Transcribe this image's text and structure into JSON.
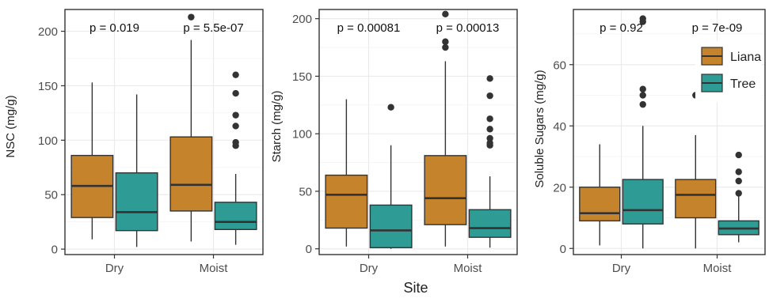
{
  "figure": {
    "shared_xlabel": "Site"
  },
  "colors": {
    "Liana": "#C5832C",
    "Tree": "#2E9B94",
    "panel_border": "#333333",
    "grid": "#EBEBEB",
    "box_line": "#333333"
  },
  "chart_data": [
    {
      "type": "boxplot",
      "ylabel": "NSC (mg/g)",
      "categories": [
        "Dry",
        "Moist"
      ],
      "ylim": [
        -5,
        220
      ],
      "yticks": [
        0,
        50,
        100,
        150,
        200
      ],
      "grid": true,
      "legend": null,
      "pvalues": [
        "p = 0.019",
        "p = 5.5e-07"
      ],
      "series": [
        {
          "name": "Liana",
          "boxes": [
            {
              "whisker_low": 9,
              "q1": 29,
              "median": 58,
              "q3": 86,
              "whisker_high": 153,
              "outliers": []
            },
            {
              "whisker_low": 7,
              "q1": 35,
              "median": 59,
              "q3": 103,
              "whisker_high": 192,
              "outliers": [
                213
              ]
            }
          ]
        },
        {
          "name": "Tree",
          "boxes": [
            {
              "whisker_low": 2,
              "q1": 17,
              "median": 34,
              "q3": 70,
              "whisker_high": 142,
              "outliers": []
            },
            {
              "whisker_low": 4,
              "q1": 18,
              "median": 25,
              "q3": 43,
              "whisker_high": 69,
              "outliers": [
                95,
                98,
                113,
                123,
                143,
                160
              ]
            }
          ]
        }
      ]
    },
    {
      "type": "boxplot",
      "ylabel": "Starch (mg/g)",
      "categories": [
        "Dry",
        "Moist"
      ],
      "ylim": [
        -5,
        208
      ],
      "yticks": [
        0,
        50,
        100,
        150,
        200
      ],
      "grid": true,
      "legend": null,
      "pvalues": [
        "p = 0.00081",
        "p = 0.00013"
      ],
      "series": [
        {
          "name": "Liana",
          "boxes": [
            {
              "whisker_low": 2,
              "q1": 18,
              "median": 47,
              "q3": 64,
              "whisker_high": 130,
              "outliers": []
            },
            {
              "whisker_low": 2,
              "q1": 21,
              "median": 44,
              "q3": 81,
              "whisker_high": 163,
              "outliers": [
                175,
                180,
                204
              ]
            }
          ]
        },
        {
          "name": "Tree",
          "boxes": [
            {
              "whisker_low": 0,
              "q1": 1,
              "median": 16,
              "q3": 38,
              "whisker_high": 90,
              "outliers": [
                123
              ]
            },
            {
              "whisker_low": 1,
              "q1": 10,
              "median": 18,
              "q3": 34,
              "whisker_high": 63,
              "outliers": [
                90,
                92,
                96,
                104,
                113,
                133,
                148
              ]
            }
          ]
        }
      ]
    },
    {
      "type": "boxplot",
      "ylabel": "Soluble Sugars (mg/g)",
      "categories": [
        "Dry",
        "Moist"
      ],
      "ylim": [
        -2,
        78
      ],
      "yticks": [
        0,
        20,
        40,
        60
      ],
      "grid": true,
      "legend": {
        "placement": "top-right",
        "entries": [
          "Liana",
          "Tree"
        ]
      },
      "pvalues": [
        "p = 0.92",
        "p = 7e-09"
      ],
      "series": [
        {
          "name": "Liana",
          "boxes": [
            {
              "whisker_low": 1,
              "q1": 9,
              "median": 11.5,
              "q3": 20,
              "whisker_high": 34,
              "outliers": []
            },
            {
              "whisker_low": 0,
              "q1": 10,
              "median": 17.5,
              "q3": 22.5,
              "whisker_high": 37,
              "outliers": [
                50
              ]
            }
          ]
        },
        {
          "name": "Tree",
          "boxes": [
            {
              "whisker_low": 0,
              "q1": 8,
              "median": 12.5,
              "q3": 22.5,
              "whisker_high": 40,
              "outliers": [
                47,
                50,
                52,
                74,
                75
              ]
            },
            {
              "whisker_low": 2,
              "q1": 4.5,
              "median": 6.5,
              "q3": 9,
              "whisker_high": 17,
              "outliers": [
                18,
                22,
                25,
                30.5
              ]
            }
          ]
        }
      ]
    }
  ]
}
